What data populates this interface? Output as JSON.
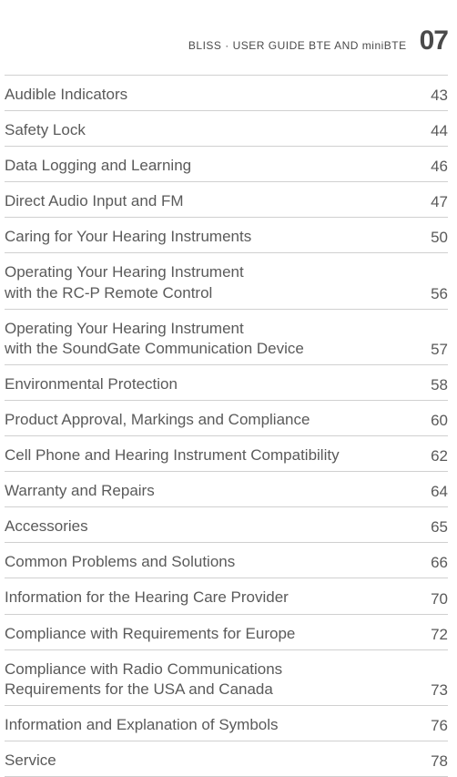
{
  "header": {
    "text": "BLISS · USER GUIDE BTE AND miniBTE",
    "page_number": "07"
  },
  "toc": {
    "entries": [
      {
        "title": "Audible Indicators",
        "page": "43"
      },
      {
        "title": "Safety Lock",
        "page": "44"
      },
      {
        "title": "Data Logging and Learning",
        "page": "46"
      },
      {
        "title": "Direct Audio Input and FM",
        "page": "47"
      },
      {
        "title": "Caring for Your Hearing Instruments",
        "page": "50"
      },
      {
        "title": "Operating Your Hearing Instrument\nwith the RC-P Remote Control",
        "page": "56"
      },
      {
        "title": "Operating Your Hearing Instrument\nwith the SoundGate Communication Device",
        "page": "57"
      },
      {
        "title": "Environmental Protection",
        "page": "58"
      },
      {
        "title": "Product Approval, Markings and Compliance",
        "page": "60"
      },
      {
        "title": "Cell Phone and Hearing Instrument Compatibility",
        "page": "62"
      },
      {
        "title": "Warranty and Repairs",
        "page": "64"
      },
      {
        "title": "Accessories",
        "page": "65"
      },
      {
        "title": "Common Problems and Solutions",
        "page": "66"
      },
      {
        "title": "Information for the Hearing Care Provider",
        "page": "70"
      },
      {
        "title": "Compliance with Requirements for Europe",
        "page": "72"
      },
      {
        "title": "Compliance with Radio Communications\nRequirements for the USA and Canada",
        "page": "73"
      },
      {
        "title": "Information and Explanation of Symbols",
        "page": "76"
      },
      {
        "title": "Service",
        "page": "78"
      }
    ]
  },
  "style": {
    "background_color": "#ffffff",
    "text_color": "#5a5a5a",
    "header_text_color": "#4a4a4a",
    "border_color": "#d0d0d0",
    "body_fontsize": 17,
    "header_fontsize": 12,
    "page_number_fontsize": 30
  }
}
